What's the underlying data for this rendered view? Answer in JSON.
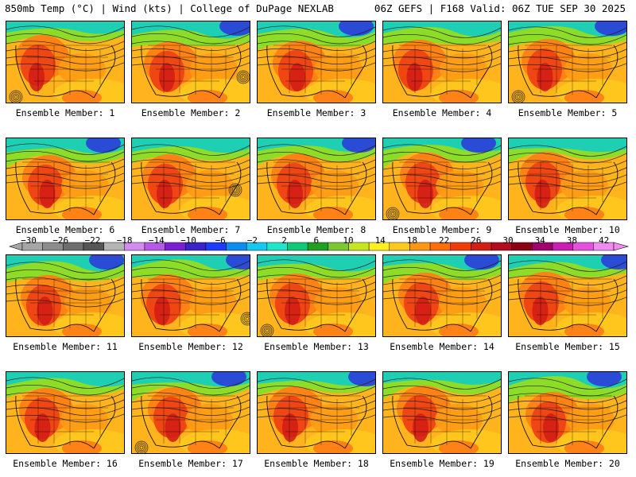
{
  "header": {
    "left": "850mb Temp (°C) | Wind (kts) | College of DuPage NEXLAB",
    "right": "06Z GEFS | F168 Valid: 06Z TUE SEP 30 2025"
  },
  "panels": [
    {
      "label": "Ensemble Member: 1"
    },
    {
      "label": "Ensemble Member: 2"
    },
    {
      "label": "Ensemble Member: 3"
    },
    {
      "label": "Ensemble Member: 4"
    },
    {
      "label": "Ensemble Member: 5"
    },
    {
      "label": "Ensemble Member: 6"
    },
    {
      "label": "Ensemble Member: 7"
    },
    {
      "label": "Ensemble Member: 8"
    },
    {
      "label": "Ensemble Member: 9"
    },
    {
      "label": "Ensemble Member: 10"
    },
    {
      "label": "Ensemble Member: 11"
    },
    {
      "label": "Ensemble Member: 12"
    },
    {
      "label": "Ensemble Member: 13"
    },
    {
      "label": "Ensemble Member: 14"
    },
    {
      "label": "Ensemble Member: 15"
    },
    {
      "label": "Ensemble Member: 16"
    },
    {
      "label": "Ensemble Member: 17"
    },
    {
      "label": "Ensemble Member: 18"
    },
    {
      "label": "Ensemble Member: 19"
    },
    {
      "label": "Ensemble Member: 20"
    }
  ],
  "colorbar": {
    "ticks": [
      "−30",
      "−26",
      "−22",
      "−18",
      "−14",
      "−10",
      "−6",
      "−2",
      "2",
      "6",
      "10",
      "14",
      "18",
      "22",
      "26",
      "30",
      "34",
      "38",
      "42"
    ],
    "colors": [
      "#a6a6a6",
      "#8c8c8c",
      "#6e6e6e",
      "#555555",
      "#b5b5b5",
      "#d28cf0",
      "#b45ae6",
      "#7b1fd2",
      "#3a23c8",
      "#1e3cff",
      "#0a8cf0",
      "#14c8f0",
      "#1ee6c8",
      "#0fc878",
      "#21a021",
      "#7dc832",
      "#c8e61e",
      "#fff01e",
      "#ffc81e",
      "#ff9614",
      "#ff6e0a",
      "#f03c0a",
      "#d21e14",
      "#b40a1e",
      "#8c0014",
      "#a0006e",
      "#c81eb4",
      "#e650dc",
      "#f08cf0"
    ]
  }
}
